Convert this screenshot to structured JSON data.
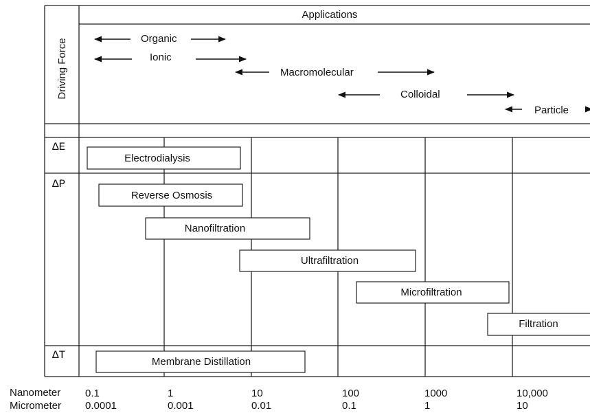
{
  "header": {
    "applications": "Applications",
    "driving_force": "Driving Force"
  },
  "applications": [
    "Organic",
    "Ionic",
    "Macromolecular",
    "Colloidal",
    "Particle"
  ],
  "driving_forces": [
    "ΔE",
    "ΔP",
    "ΔT"
  ],
  "processes": [
    "Electrodialysis",
    "Reverse Osmosis",
    "Nanofiltration",
    "Ultrafiltration",
    "Microfiltration",
    "Filtration",
    "Membrane Distillation"
  ],
  "scale": {
    "nanometer_label": "Nanometer",
    "micrometer_label": "Micrometer",
    "nanometer": [
      "0.1",
      "1",
      "10",
      "100",
      "1000",
      "10,000"
    ],
    "micrometer": [
      "0.0001",
      "0.001",
      "0.01",
      "0.1",
      "1",
      "10"
    ]
  }
}
